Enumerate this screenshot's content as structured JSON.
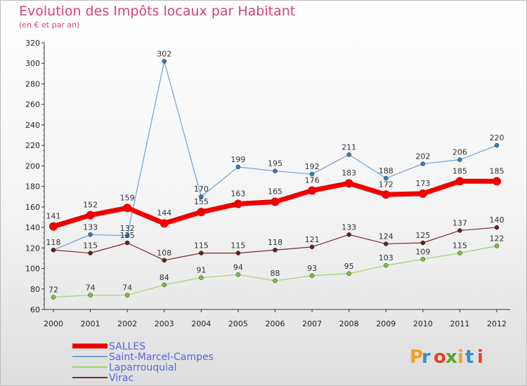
{
  "header": {
    "title": "Evolution des Impôts locaux par Habitant",
    "subtitle": "(en € et par an)"
  },
  "logo": {
    "text": "Proxiti",
    "letters": [
      "P",
      "r",
      "o",
      "x",
      "i",
      "t",
      "i"
    ],
    "colors": [
      "#f2a324",
      "#2f8fd0",
      "#e2442f",
      "#58a82b",
      "#f2a324",
      "#2f8fd0",
      "#e2442f"
    ]
  },
  "chart_data": {
    "type": "line",
    "title": "Evolution des Impôts locaux par Habitant",
    "subtitle": "(en € et par an)",
    "xlabel": "",
    "ylabel": "",
    "x": [
      "2000",
      "2001",
      "2002",
      "2003",
      "2004",
      "2005",
      "2006",
      "2007",
      "2008",
      "2009",
      "2010",
      "2011",
      "2012"
    ],
    "ylim": [
      60,
      320
    ],
    "yticks": [
      60,
      80,
      100,
      120,
      140,
      160,
      180,
      200,
      220,
      240,
      260,
      280,
      300,
      320
    ],
    "grid": false,
    "legend": "bottom-left",
    "series": [
      {
        "name": "Saint-Marcel-Campes",
        "color": "#6fa3d4",
        "marker": "#2d7fc7",
        "width": 1.2,
        "values": [
          118,
          133,
          132,
          302,
          170,
          199,
          195,
          192,
          211,
          188,
          202,
          206,
          220
        ],
        "labels": [
          "",
          "133",
          "132",
          "302",
          "170",
          "199",
          "195",
          "192",
          "211",
          "188",
          "202",
          "206",
          "220"
        ],
        "label_pos": "above"
      },
      {
        "name": "Virac",
        "color": "#7a2a2a",
        "marker": "#6a1f1f",
        "width": 1.2,
        "values": [
          118,
          115,
          125,
          108,
          115,
          115,
          118,
          121,
          133,
          124,
          125,
          137,
          140
        ],
        "labels": [
          "118",
          "115",
          "125",
          "108",
          "115",
          "115",
          "118",
          "121",
          "133",
          "124",
          "125",
          "137",
          "140"
        ],
        "label_pos": "above"
      },
      {
        "name": "Laparrouquial",
        "color": "#9ed36a",
        "marker": "#7ec13e",
        "width": 1.2,
        "values": [
          72,
          74,
          74,
          84,
          91,
          94,
          88,
          93,
          95,
          103,
          109,
          115,
          122
        ],
        "labels": [
          "72",
          "74",
          "74",
          "84",
          "91",
          "94",
          "88",
          "93",
          "95",
          "103",
          "109",
          "115",
          "122"
        ],
        "label_pos": "above"
      },
      {
        "name": "SALLES",
        "color": "#ee0000",
        "marker": "#ee0000",
        "width": 7,
        "values": [
          141,
          152,
          159,
          144,
          155,
          163,
          165,
          176,
          183,
          172,
          173,
          185,
          185
        ],
        "labels": [
          "141",
          "152",
          "159",
          "144",
          "155",
          "163",
          "165",
          "176",
          "183",
          "172",
          "173",
          "185",
          "185"
        ],
        "label_pos": "above"
      }
    ],
    "legend_order": [
      "SALLES",
      "Saint-Marcel-Campes",
      "Laparrouquial",
      "Virac"
    ]
  }
}
